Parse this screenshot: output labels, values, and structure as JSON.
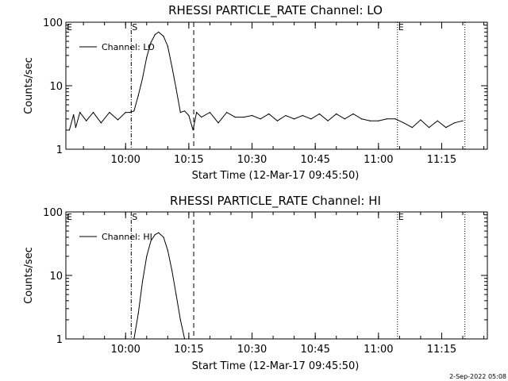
{
  "footer": {
    "timestamp": "2-Sep-2022 05:08"
  },
  "chart_data": [
    {
      "type": "line",
      "title": "RHESSI PARTICLE_RATE Channel: LO",
      "xlabel": "Start Time (12-Mar-17 09:45:50)",
      "ylabel": "Counts/sec",
      "yscale": "log",
      "ylim": [
        1,
        100
      ],
      "xlim_minutes_after_start": [
        0,
        100
      ],
      "xticks": [
        "10:00",
        "10:15",
        "10:30",
        "10:45",
        "11:00",
        "11:15"
      ],
      "yticks": [
        "1",
        "10",
        "100"
      ],
      "legend": {
        "label": "Channel: LO",
        "position": "top-left"
      },
      "markers": [
        {
          "label": "E",
          "time": "09:45:50",
          "style": "none"
        },
        {
          "label": "S",
          "time": "10:01:20",
          "style": "dashdot"
        },
        {
          "label": "",
          "time": "10:16:10",
          "style": "dashed"
        },
        {
          "label": "E",
          "time": "11:04:30",
          "style": "dotted"
        },
        {
          "label": "",
          "time": "11:20:30",
          "style": "dotted"
        }
      ],
      "series": [
        {
          "name": "Channel: LO",
          "x_time": [
            "09:46:40",
            "09:47:40",
            "09:48:10",
            "09:49:10",
            "09:50:40",
            "09:52:20",
            "09:54:10",
            "09:56:10",
            "09:58:10",
            "10:00:00",
            "10:01:00",
            "10:02:00",
            "10:03:00",
            "10:04:00",
            "10:05:00",
            "10:06:00",
            "10:07:00",
            "10:07:50",
            "10:09:00",
            "10:10:00",
            "10:11:00",
            "10:12:00",
            "10:13:00",
            "10:14:00",
            "10:15:00",
            "10:16:00",
            "10:16:50",
            "10:18:00",
            "10:20:00",
            "10:22:00",
            "10:24:00",
            "10:26:00",
            "10:28:00",
            "10:30:00",
            "10:32:00",
            "10:34:00",
            "10:36:00",
            "10:38:00",
            "10:40:00",
            "10:42:00",
            "10:44:00",
            "10:46:00",
            "10:48:00",
            "10:50:00",
            "10:52:00",
            "10:54:00",
            "10:56:00",
            "10:58:00",
            "11:00:00",
            "11:02:00",
            "11:04:00",
            "11:06:00",
            "11:08:00",
            "11:10:00",
            "11:12:00",
            "11:14:00",
            "11:16:00",
            "11:18:00",
            "11:20:00"
          ],
          "y": [
            2.0,
            3.5,
            2.2,
            3.8,
            2.8,
            3.8,
            2.6,
            3.8,
            2.9,
            3.8,
            3.8,
            4.0,
            7.0,
            13.0,
            28.0,
            48.0,
            64.0,
            70.0,
            60.0,
            42.0,
            20.0,
            9.0,
            3.8,
            4.0,
            3.4,
            2.0,
            3.8,
            3.2,
            3.8,
            2.6,
            3.8,
            3.2,
            3.2,
            3.4,
            3.0,
            3.6,
            2.8,
            3.4,
            3.0,
            3.4,
            3.0,
            3.6,
            2.8,
            3.6,
            3.0,
            3.6,
            3.0,
            2.8,
            2.8,
            3.0,
            3.0,
            2.6,
            2.2,
            2.9,
            2.2,
            2.8,
            2.2,
            2.6,
            2.8
          ]
        }
      ]
    },
    {
      "type": "line",
      "title": "RHESSI PARTICLE_RATE Channel: HI",
      "xlabel": "Start Time (12-Mar-17 09:45:50)",
      "ylabel": "Counts/sec",
      "yscale": "log",
      "ylim": [
        1,
        100
      ],
      "xlim_minutes_after_start": [
        0,
        100
      ],
      "xticks": [
        "10:00",
        "10:15",
        "10:30",
        "10:45",
        "11:00",
        "11:15"
      ],
      "yticks": [
        "1",
        "10",
        "100"
      ],
      "legend": {
        "label": "Channel: HI",
        "position": "top-left"
      },
      "markers": [
        {
          "label": "E",
          "time": "09:45:50",
          "style": "none"
        },
        {
          "label": "S",
          "time": "10:01:20",
          "style": "dashdot"
        },
        {
          "label": "",
          "time": "10:16:10",
          "style": "dashed"
        },
        {
          "label": "E",
          "time": "11:04:30",
          "style": "dotted"
        },
        {
          "label": "",
          "time": "11:20:30",
          "style": "dotted"
        }
      ],
      "series": [
        {
          "name": "Channel: HI",
          "x_time": [
            "10:02:00",
            "10:03:00",
            "10:04:00",
            "10:05:00",
            "10:06:00",
            "10:07:00",
            "10:07:50",
            "10:09:00",
            "10:10:00",
            "10:11:00",
            "10:12:00",
            "10:13:00",
            "10:14:00"
          ],
          "y": [
            1.0,
            2.5,
            8.0,
            20.0,
            35.0,
            44.0,
            47.0,
            40.0,
            25.0,
            12.0,
            5.0,
            2.0,
            1.0
          ]
        }
      ]
    }
  ]
}
